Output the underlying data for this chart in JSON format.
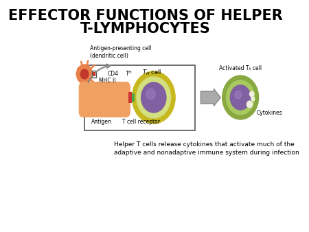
{
  "title_line1": "EFFECTOR FUNCTIONS OF HELPER",
  "title_line2": "T-LYMPHOCYTES",
  "title_fontsize": 15,
  "title_weight": "bold",
  "bg_color": "#ffffff",
  "caption": "Helper T cells release cytokines that activate much of the\nadaptive and nonadaptive immune system during infection",
  "caption_fontsize": 6.5,
  "label_apc": "Antigen-presenting cell\n(dendritic cell)",
  "label_th": "Tₕ cell",
  "label_activated_th": "Activated Tₕ cell",
  "label_cd4": "CD4",
  "label_mhc": "MHC II",
  "label_antigen": "Antigen",
  "label_tcr": "T cell receptor",
  "label_cytokines": "Cytokines",
  "box_color": "#e8e8e8",
  "box_edge_color": "#555555"
}
